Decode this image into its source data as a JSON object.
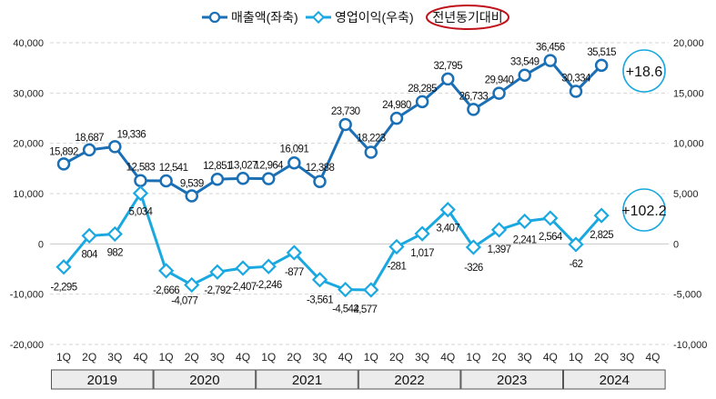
{
  "chart_data": {
    "type": "line",
    "legend": {
      "position": "top",
      "items": [
        "매출액(좌축)",
        "영업이익(우축)",
        "전년동기대비"
      ]
    },
    "left_axis": {
      "ylim": [
        -20000,
        40000
      ],
      "ticks": [
        "-20,000",
        "-10,000",
        "0",
        "10,000",
        "20,000",
        "30,000",
        "40,000"
      ],
      "tick_values": [
        -20000,
        -10000,
        0,
        10000,
        20000,
        30000,
        40000
      ]
    },
    "right_axis": {
      "ylim": [
        -10000,
        20000
      ],
      "ticks": [
        "-10,000",
        "-5,000",
        "0",
        "5,000",
        "10,000",
        "15,000",
        "20,000"
      ],
      "tick_values": [
        -10000,
        -5000,
        0,
        5000,
        10000,
        15000,
        20000
      ]
    },
    "quarters": [
      "1Q",
      "2Q",
      "3Q",
      "4Q"
    ],
    "years": [
      "2019",
      "2020",
      "2021",
      "2022",
      "2023",
      "2024"
    ],
    "series": [
      {
        "name": "매출액(좌축)",
        "axis": "left",
        "color": "#1a6fb5",
        "values": [
          15892,
          18687,
          19336,
          12583,
          12541,
          9539,
          12851,
          13027,
          12964,
          16091,
          12388,
          23730,
          18223,
          24980,
          28285,
          32795,
          26733,
          29940,
          33549,
          36456,
          30334,
          35515
        ],
        "labels": [
          "15,892",
          "18,687",
          "19,336",
          "12,583",
          "12,541",
          "9,539",
          "12,851",
          "13,027",
          "12,964",
          "16,091",
          "12,388",
          "23,730",
          "18,223",
          "24,980",
          "28,285",
          "32,795",
          "26,733",
          "29,940",
          "33,549",
          "36,456",
          "30,334",
          "35,515"
        ]
      },
      {
        "name": "영업이익(우축)",
        "axis": "right",
        "color": "#1aa8e0",
        "values": [
          -2295,
          804,
          982,
          5034,
          -2666,
          -4077,
          -2792,
          -2407,
          -2246,
          -877,
          -3561,
          -4542,
          -4577,
          -281,
          1017,
          3407,
          -326,
          1397,
          2241,
          2564,
          -62,
          2825
        ],
        "labels": [
          "-2,295",
          "804",
          "982",
          "5,034",
          "-2,666",
          "-4,077",
          "-2,792",
          "-2,407",
          "-2,246",
          "-877",
          "-3,561",
          "-4,542",
          "-4,577",
          "-281",
          "1,017",
          "3,407",
          "-326",
          "1,397",
          "2,241",
          "2,564",
          "-62",
          "2,825"
        ]
      }
    ],
    "annotations": [
      {
        "series": "매출액(좌축)",
        "text": "+18.6"
      },
      {
        "series": "영업이익(우축)",
        "text": "+102.2"
      }
    ]
  }
}
